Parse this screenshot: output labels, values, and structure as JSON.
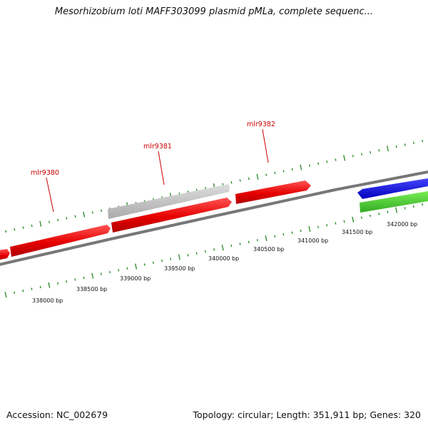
{
  "title": "Mesorhizobium loti MAFF303099 plasmid pMLa, complete sequenc...",
  "footer": {
    "accession": "Accession: NC_002679",
    "summary": "Topology: circular; Length: 351,911 bp; Genes: 320"
  },
  "colors": {
    "forward_gene": "#ee1111",
    "hypothetical_gene": "#c0c0c0",
    "blue_gene": "#1111dd",
    "green_gene": "#44cc33",
    "backbone": "#777777",
    "tick": "#228822",
    "gene_label": "#cc0000"
  },
  "position_labels": [
    "338000 bp",
    "338500 bp",
    "339000 bp",
    "339500 bp",
    "340000 bp",
    "340500 bp",
    "341000 bp",
    "341500 bp",
    "342000 bp"
  ],
  "gene_labels": [
    "mlr9380",
    "mlr9381",
    "mlr9382"
  ]
}
